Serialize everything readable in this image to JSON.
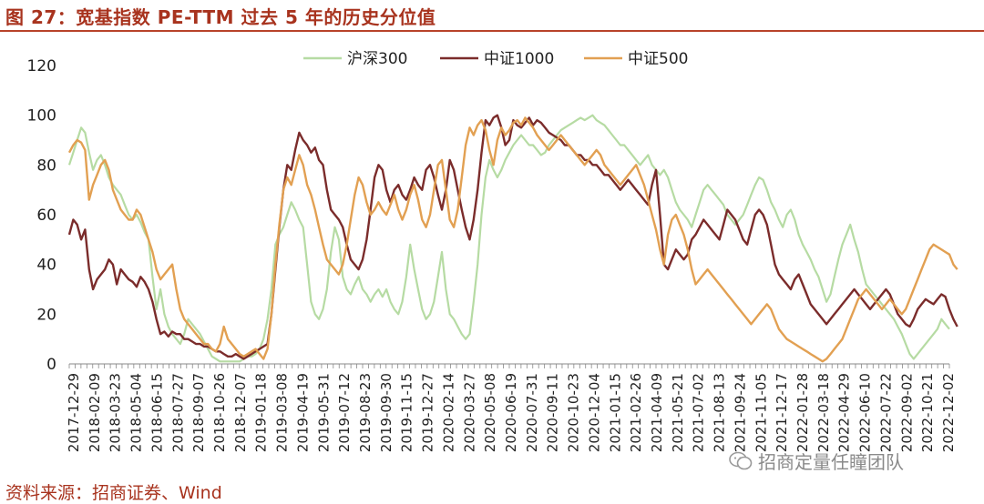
{
  "figure": {
    "title": "图 27：宽基指数 PE-TTM 过去 5 年的历史分位值",
    "source": "资料来源：招商证券、Wind",
    "watermark": "招商定量任瞳团队"
  },
  "chart_data": {
    "type": "line",
    "title": "",
    "xlabel": "",
    "ylabel": "",
    "ylim": [
      0,
      120
    ],
    "yticks": [
      0,
      20,
      40,
      60,
      80,
      100,
      120
    ],
    "grid": false,
    "legend_position": "top-center",
    "x_tick_labels": [
      "2017-12-29",
      "2018-02-09",
      "2018-03-23",
      "2018-05-04",
      "2018-06-15",
      "2018-07-27",
      "2018-09-07",
      "2018-10-26",
      "2018-12-07",
      "2019-01-18",
      "2019-03-08",
      "2019-04-19",
      "2019-05-31",
      "2019-07-12",
      "2019-08-23",
      "2019-09-30",
      "2019-11-15",
      "2019-12-27",
      "2020-02-14",
      "2020-03-27",
      "2020-05-08",
      "2020-06-19",
      "2020-07-31",
      "2020-09-11",
      "2020-10-23",
      "2020-12-04",
      "2021-01-15",
      "2021-02-26",
      "2021-04-09",
      "2021-05-21",
      "2021-07-02",
      "2021-08-13",
      "2021-09-24",
      "2021-11-05",
      "2021-12-17",
      "2022-01-28",
      "2022-03-18",
      "2022-04-29",
      "2022-06-10",
      "2022-07-22",
      "2022-09-02",
      "2022-10-21",
      "2022-12-02"
    ],
    "series": [
      {
        "name": "沪深300",
        "color": "#b6dba3",
        "values": [
          80,
          85,
          90,
          95,
          93,
          85,
          78,
          82,
          84,
          80,
          75,
          72,
          70,
          68,
          64,
          60,
          58,
          60,
          57,
          53,
          50,
          35,
          22,
          30,
          20,
          15,
          12,
          10,
          8,
          12,
          18,
          16,
          14,
          12,
          9,
          6,
          3,
          2,
          1,
          1,
          1,
          1,
          1,
          1,
          2,
          3,
          3,
          4,
          6,
          10,
          18,
          30,
          48,
          52,
          55,
          60,
          65,
          62,
          58,
          55,
          40,
          25,
          20,
          18,
          22,
          30,
          45,
          55,
          50,
          35,
          30,
          28,
          32,
          35,
          30,
          28,
          25,
          28,
          30,
          27,
          30,
          25,
          22,
          20,
          25,
          35,
          48,
          38,
          30,
          22,
          18,
          20,
          25,
          35,
          45,
          30,
          20,
          18,
          15,
          12,
          10,
          12,
          25,
          40,
          60,
          75,
          82,
          78,
          75,
          78,
          82,
          85,
          88,
          90,
          92,
          90,
          88,
          88,
          86,
          84,
          85,
          88,
          90,
          92,
          94,
          95,
          96,
          97,
          98,
          99,
          98,
          99,
          100,
          98,
          97,
          96,
          94,
          92,
          90,
          88,
          88,
          86,
          84,
          82,
          80,
          82,
          84,
          80,
          78,
          76,
          78,
          75,
          70,
          65,
          62,
          60,
          58,
          55,
          60,
          65,
          70,
          72,
          70,
          68,
          66,
          64,
          60,
          58,
          56,
          58,
          60,
          64,
          68,
          72,
          75,
          74,
          70,
          65,
          62,
          58,
          55,
          60,
          62,
          58,
          52,
          48,
          45,
          42,
          38,
          35,
          30,
          25,
          28,
          35,
          42,
          48,
          52,
          56,
          50,
          45,
          38,
          32,
          30,
          28,
          26,
          24,
          22,
          20,
          18,
          15,
          12,
          8,
          4,
          2,
          4,
          6,
          8,
          10,
          12,
          14,
          18,
          16,
          14
        ]
      },
      {
        "name": "中证1000",
        "color": "#7b2c2b",
        "values": [
          52,
          58,
          56,
          50,
          54,
          38,
          30,
          34,
          36,
          38,
          42,
          40,
          32,
          38,
          36,
          34,
          33,
          31,
          35,
          33,
          30,
          25,
          18,
          12,
          13,
          11,
          13,
          12,
          12,
          10,
          10,
          9,
          8,
          8,
          7,
          7,
          6,
          5,
          5,
          4,
          3,
          3,
          4,
          3,
          2,
          3,
          4,
          5,
          6,
          7,
          8,
          20,
          38,
          55,
          70,
          80,
          78,
          86,
          93,
          90,
          88,
          85,
          87,
          82,
          80,
          70,
          62,
          60,
          58,
          55,
          48,
          42,
          40,
          38,
          42,
          50,
          62,
          75,
          80,
          78,
          70,
          65,
          70,
          72,
          68,
          66,
          70,
          75,
          72,
          70,
          78,
          80,
          75,
          68,
          62,
          70,
          82,
          78,
          70,
          62,
          55,
          50,
          58,
          70,
          85,
          98,
          96,
          99,
          100,
          95,
          88,
          90,
          98,
          96,
          95,
          97,
          99,
          96,
          98,
          97,
          95,
          93,
          92,
          91,
          90,
          88,
          88,
          86,
          84,
          84,
          82,
          82,
          80,
          80,
          78,
          76,
          76,
          74,
          72,
          70,
          72,
          74,
          72,
          70,
          68,
          66,
          64,
          72,
          78,
          60,
          40,
          38,
          42,
          46,
          44,
          42,
          44,
          50,
          52,
          55,
          58,
          56,
          54,
          52,
          50,
          56,
          62,
          60,
          58,
          54,
          50,
          48,
          54,
          60,
          62,
          60,
          56,
          48,
          40,
          36,
          34,
          32,
          30,
          34,
          36,
          32,
          28,
          24,
          22,
          20,
          18,
          16,
          18,
          20,
          22,
          24,
          26,
          28,
          30,
          28,
          26,
          24,
          22,
          24,
          26,
          28,
          30,
          28,
          24,
          20,
          18,
          16,
          15,
          18,
          22,
          24,
          26,
          25,
          24,
          26,
          28,
          27,
          22,
          18,
          15
        ]
      },
      {
        "name": "中证500",
        "color": "#e2a052",
        "values": [
          85,
          88,
          90,
          89,
          86,
          66,
          72,
          76,
          80,
          82,
          78,
          70,
          66,
          62,
          60,
          58,
          58,
          62,
          60,
          55,
          50,
          45,
          38,
          34,
          36,
          38,
          40,
          30,
          22,
          18,
          16,
          14,
          12,
          10,
          8,
          8,
          6,
          5,
          8,
          15,
          10,
          8,
          6,
          4,
          3,
          4,
          5,
          6,
          4,
          2,
          6,
          20,
          40,
          56,
          70,
          75,
          72,
          78,
          84,
          80,
          72,
          68,
          62,
          55,
          48,
          42,
          40,
          38,
          36,
          40,
          48,
          58,
          68,
          75,
          72,
          65,
          60,
          62,
          65,
          62,
          60,
          64,
          68,
          62,
          58,
          62,
          68,
          72,
          66,
          58,
          55,
          60,
          70,
          80,
          82,
          70,
          58,
          55,
          62,
          75,
          88,
          95,
          92,
          96,
          98,
          94,
          86,
          80,
          90,
          95,
          92,
          94,
          97,
          98,
          96,
          99,
          97,
          95,
          92,
          90,
          88,
          86,
          88,
          90,
          92,
          90,
          88,
          86,
          84,
          82,
          80,
          82,
          84,
          86,
          84,
          80,
          78,
          76,
          74,
          72,
          74,
          76,
          78,
          80,
          76,
          72,
          66,
          60,
          54,
          46,
          40,
          52,
          58,
          60,
          56,
          52,
          46,
          38,
          32,
          34,
          36,
          38,
          36,
          34,
          32,
          30,
          28,
          26,
          24,
          22,
          20,
          18,
          16,
          18,
          20,
          22,
          24,
          22,
          18,
          14,
          12,
          10,
          9,
          8,
          7,
          6,
          5,
          4,
          3,
          2,
          1,
          2,
          4,
          6,
          8,
          10,
          14,
          18,
          22,
          26,
          28,
          30,
          28,
          26,
          24,
          22,
          24,
          26,
          24,
          22,
          20,
          22,
          26,
          30,
          34,
          38,
          42,
          46,
          48,
          47,
          46,
          45,
          44,
          40,
          38
        ]
      }
    ]
  }
}
